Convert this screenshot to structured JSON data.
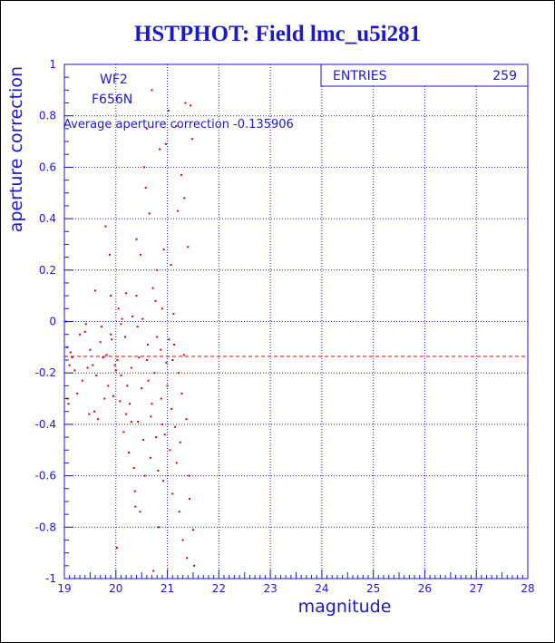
{
  "title": "HSTPHOT: Field lmc_u5i281",
  "chart_data": {
    "type": "scatter",
    "title": "HSTPHOT: Field lmc_u5i281",
    "xlabel": "magnitude",
    "ylabel": "aperture correction",
    "xlim": [
      19,
      28
    ],
    "ylim": [
      -1,
      1
    ],
    "x_ticks": [
      "19",
      "20",
      "21",
      "22",
      "23",
      "24",
      "25",
      "26",
      "27",
      "28"
    ],
    "y_ticks": [
      "-1",
      "-0.8",
      "-0.6",
      "-0.4",
      "-0.2",
      "0",
      "0.2",
      "0.4",
      "0.6",
      "0.8",
      "1"
    ],
    "grid": true,
    "labels": [
      "WF2",
      "F656N"
    ],
    "stats": {
      "entries_label": "ENTRIES",
      "entries_value": "259"
    },
    "average_line": {
      "label": "Average aperture correction",
      "value_text": "-0.135906",
      "y": -0.135906
    },
    "points": [
      [
        19.03,
        0.0
      ],
      [
        19.05,
        -0.1
      ],
      [
        19.06,
        -0.3
      ],
      [
        19.08,
        -0.32
      ],
      [
        19.1,
        -0.17
      ],
      [
        19.12,
        -0.12
      ],
      [
        19.15,
        -0.14
      ],
      [
        19.2,
        -0.19
      ],
      [
        19.25,
        -0.28
      ],
      [
        19.3,
        -0.05
      ],
      [
        19.35,
        -0.23
      ],
      [
        19.4,
        -0.04
      ],
      [
        19.42,
        -0.01
      ],
      [
        19.45,
        -0.18
      ],
      [
        19.48,
        -0.36
      ],
      [
        19.5,
        -0.11
      ],
      [
        19.55,
        -0.17
      ],
      [
        19.58,
        -0.35
      ],
      [
        19.6,
        0.12
      ],
      [
        19.62,
        -0.21
      ],
      [
        19.65,
        -0.38
      ],
      [
        19.7,
        -0.08
      ],
      [
        19.72,
        -0.02
      ],
      [
        19.75,
        -0.14
      ],
      [
        19.78,
        -0.3
      ],
      [
        19.8,
        0.37
      ],
      [
        19.82,
        -0.13
      ],
      [
        19.85,
        -0.25
      ],
      [
        19.88,
        0.26
      ],
      [
        19.9,
        -0.05
      ],
      [
        19.92,
        -0.07
      ],
      [
        19.95,
        -0.29
      ],
      [
        19.98,
        -0.17
      ],
      [
        20.0,
        -0.19
      ],
      [
        20.02,
        -0.88
      ],
      [
        20.03,
        -0.15
      ],
      [
        20.05,
        0.05
      ],
      [
        20.08,
        -0.31
      ],
      [
        20.1,
        -0.01
      ],
      [
        20.12,
        0.01
      ],
      [
        20.15,
        -0.43
      ],
      [
        20.18,
        -0.06
      ],
      [
        20.2,
        0.11
      ],
      [
        20.22,
        -0.25
      ],
      [
        20.25,
        -0.51
      ],
      [
        20.27,
        -0.32
      ],
      [
        20.3,
        -0.18
      ],
      [
        20.32,
        0.02
      ],
      [
        20.35,
        -0.57
      ],
      [
        20.37,
        -0.66
      ],
      [
        20.38,
        -0.72
      ],
      [
        20.4,
        0.32
      ],
      [
        20.42,
        -0.02
      ],
      [
        20.43,
        -0.39
      ],
      [
        20.45,
        -0.14
      ],
      [
        20.47,
        -0.74
      ],
      [
        20.48,
        0.26
      ],
      [
        20.5,
        -0.26
      ],
      [
        20.52,
        0.01
      ],
      [
        20.53,
        -0.46
      ],
      [
        20.55,
        0.6
      ],
      [
        20.56,
        -0.6
      ],
      [
        20.58,
        0.52
      ],
      [
        20.6,
        0.75
      ],
      [
        20.62,
        -0.09
      ],
      [
        20.63,
        -0.23
      ],
      [
        20.65,
        0.42
      ],
      [
        20.67,
        -0.53
      ],
      [
        20.68,
        -0.37
      ],
      [
        20.7,
        0.9
      ],
      [
        20.72,
        0.13
      ],
      [
        20.73,
        -0.97
      ],
      [
        20.75,
        -0.2
      ],
      [
        20.77,
        0.08
      ],
      [
        20.78,
        -0.45
      ],
      [
        20.8,
        0.2
      ],
      [
        20.82,
        -0.58
      ],
      [
        20.83,
        -0.8
      ],
      [
        20.85,
        0.67
      ],
      [
        20.87,
        -0.11
      ],
      [
        20.88,
        -0.3
      ],
      [
        20.9,
        0.05
      ],
      [
        20.92,
        -0.62
      ],
      [
        20.93,
        0.28
      ],
      [
        20.95,
        -0.44
      ],
      [
        20.97,
        0.69
      ],
      [
        20.98,
        -0.16
      ],
      [
        21.0,
        -0.25
      ],
      [
        21.02,
        0.82
      ],
      [
        21.03,
        -0.07
      ],
      [
        21.05,
        -0.5
      ],
      [
        21.07,
        0.22
      ],
      [
        21.08,
        -0.34
      ],
      [
        21.1,
        -0.67
      ],
      [
        21.12,
        0.03
      ],
      [
        21.13,
        -0.09
      ],
      [
        21.15,
        -0.41
      ],
      [
        21.17,
        0.76
      ],
      [
        21.18,
        -0.55
      ],
      [
        21.2,
        0.43
      ],
      [
        21.22,
        -0.2
      ],
      [
        21.23,
        -0.74
      ],
      [
        21.25,
        -0.47
      ],
      [
        21.27,
        0.57
      ],
      [
        21.28,
        -0.28
      ],
      [
        21.3,
        -0.85
      ],
      [
        21.32,
        -0.13
      ],
      [
        21.33,
        0.48
      ],
      [
        21.35,
        0.85
      ],
      [
        21.37,
        -0.38
      ],
      [
        21.38,
        -0.92
      ],
      [
        21.4,
        0.29
      ],
      [
        21.42,
        -0.6
      ],
      [
        21.43,
        -0.69
      ],
      [
        21.45,
        0.84
      ],
      [
        21.48,
        0.71
      ],
      [
        21.5,
        -0.81
      ],
      [
        21.52,
        -0.95
      ],
      [
        20.1,
        -0.21
      ],
      [
        20.2,
        -0.36
      ],
      [
        20.6,
        -0.15
      ],
      [
        20.8,
        -0.06
      ],
      [
        21.1,
        -0.15
      ],
      [
        20.3,
        -0.39
      ],
      [
        20.7,
        -0.32
      ],
      [
        19.9,
        0.1
      ],
      [
        20.4,
        0.1
      ],
      [
        20.9,
        -0.4
      ]
    ]
  }
}
